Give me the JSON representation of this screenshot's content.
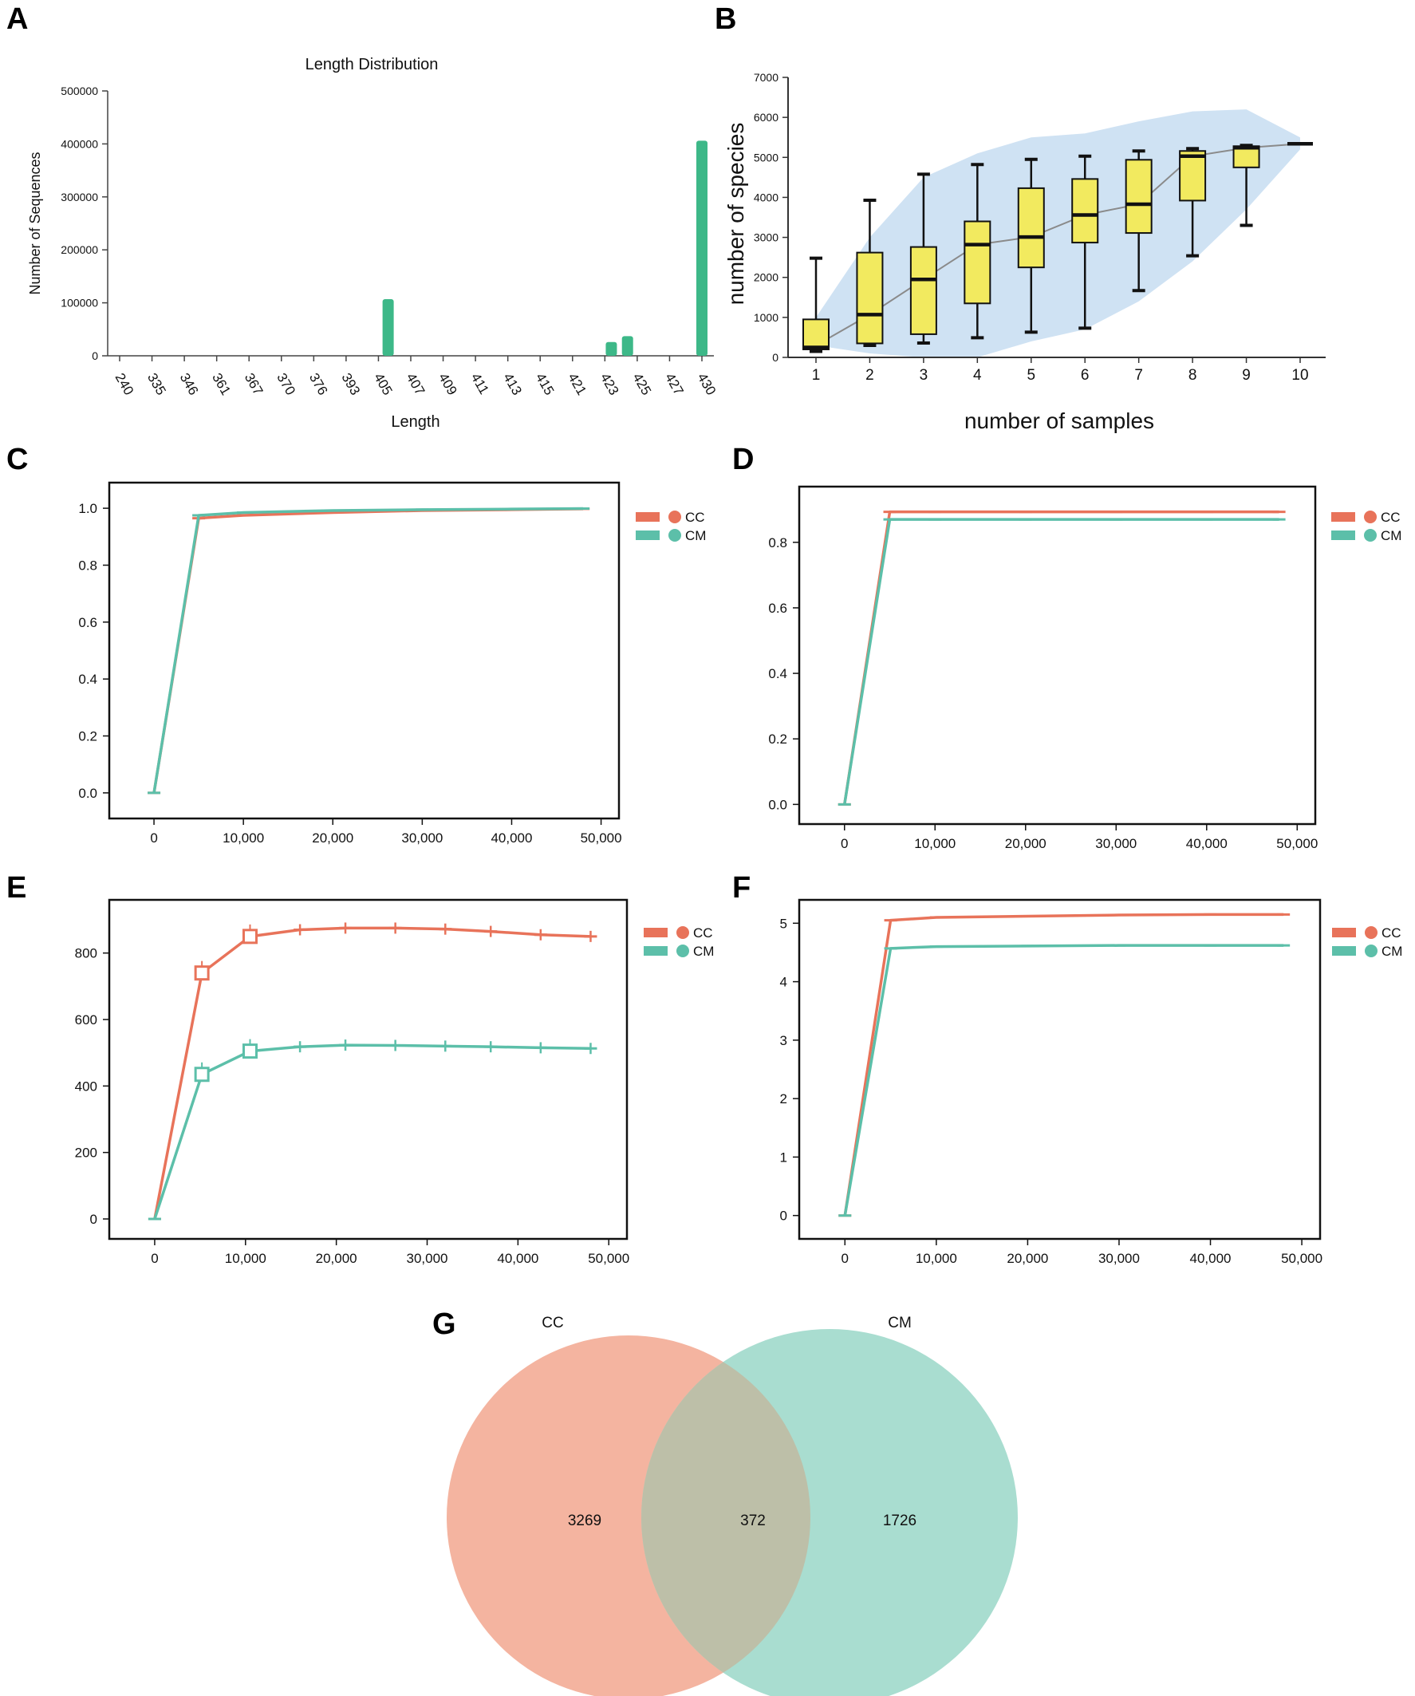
{
  "figure": {
    "panel_letters": [
      "A",
      "B",
      "C",
      "D",
      "E",
      "F",
      "G"
    ],
    "colors": {
      "cc": "#e8735a",
      "cm": "#5cbfa9",
      "bar": "#3db888",
      "box": "#f2ea5f",
      "band": "#cfe2f3",
      "venn_cc": "#f4b4a0",
      "venn_cm": "#a9ddd0",
      "venn_overlap": "#bdbfa8"
    }
  },
  "chart_data": [
    {
      "panel": "A",
      "type": "bar",
      "title": "Length Distribution",
      "xlabel": "Length",
      "ylabel": "Number of Sequences",
      "categories": [
        "240",
        "335",
        "346",
        "361",
        "367",
        "370",
        "376",
        "393",
        "405",
        "407",
        "409",
        "411",
        "413",
        "415",
        "421",
        "423",
        "425",
        "427",
        "430"
      ],
      "values": [
        0,
        0,
        0,
        0,
        0,
        0,
        0,
        0,
        107000,
        0,
        0,
        0,
        0,
        0,
        0,
        26000,
        37000,
        0,
        406000
      ],
      "bar_positions": [
        0,
        1,
        2,
        3,
        4,
        5,
        6,
        7,
        8.3,
        9,
        10,
        11,
        12,
        13,
        14,
        15.2,
        15.7,
        17,
        18
      ],
      "ylim": [
        0,
        500000
      ],
      "yticks": [
        0,
        100000,
        200000,
        300000,
        400000,
        500000
      ]
    },
    {
      "panel": "B",
      "type": "box",
      "xlabel": "number of samples",
      "ylabel": "number of species",
      "categories": [
        "1",
        "2",
        "3",
        "4",
        "5",
        "6",
        "7",
        "8",
        "9",
        "10"
      ],
      "ylim": [
        0,
        7000
      ],
      "yticks": [
        0,
        1000,
        2000,
        3000,
        4000,
        5000,
        6000,
        7000
      ],
      "boxes": [
        {
          "min": 150,
          "q1": 200,
          "median": 250,
          "q3": 950,
          "max": 2480
        },
        {
          "min": 300,
          "q1": 350,
          "median": 1070,
          "q3": 2620,
          "max": 3930
        },
        {
          "min": 360,
          "q1": 580,
          "median": 1950,
          "q3": 2760,
          "max": 4580
        },
        {
          "min": 490,
          "q1": 1350,
          "median": 2820,
          "q3": 3400,
          "max": 4820
        },
        {
          "min": 630,
          "q1": 2250,
          "median": 3010,
          "q3": 4230,
          "max": 4950
        },
        {
          "min": 730,
          "q1": 2870,
          "median": 3560,
          "q3": 4460,
          "max": 5030
        },
        {
          "min": 1670,
          "q1": 3110,
          "median": 3830,
          "q3": 4940,
          "max": 5160
        },
        {
          "min": 2540,
          "q1": 3920,
          "median": 5030,
          "q3": 5160,
          "max": 5220
        },
        {
          "min": 3300,
          "q1": 4750,
          "median": 5240,
          "q3": 5280,
          "max": 5300
        },
        {
          "min": 5340,
          "q1": 5340,
          "median": 5340,
          "q3": 5340,
          "max": 5340
        }
      ],
      "mean_line": [
        300,
        1070,
        1950,
        2820,
        3010,
        3560,
        3830,
        5030,
        5240,
        5340
      ],
      "band_upper": [
        1000,
        3000,
        4500,
        5100,
        5500,
        5600,
        5900,
        6150,
        6200,
        5500
      ],
      "band_lower": [
        300,
        100,
        0,
        0,
        400,
        700,
        1400,
        2400,
        3700,
        5200
      ]
    },
    {
      "panel": "C",
      "type": "line",
      "xlim": [
        -5000,
        52000
      ],
      "ylim": [
        -0.09,
        1.09
      ],
      "xticks": [
        0,
        10000,
        20000,
        30000,
        40000,
        50000
      ],
      "xtick_labels": [
        "0",
        "10,000",
        "20,000",
        "30,000",
        "40,000",
        "50,000"
      ],
      "yticks": [
        0,
        0.2,
        0.4,
        0.6,
        0.8,
        1.0
      ],
      "ytick_labels": [
        "0.0",
        "0.2",
        "0.4",
        "0.6",
        "0.8",
        "1.0"
      ],
      "legend": [
        "CC",
        "CM"
      ],
      "series": [
        {
          "name": "CC",
          "x": [
            0,
            5000,
            10000,
            20000,
            30000,
            40000,
            48000
          ],
          "y": [
            0,
            0.965,
            0.975,
            0.985,
            0.992,
            0.995,
            0.998
          ]
        },
        {
          "name": "CM",
          "x": [
            0,
            5000,
            10000,
            20000,
            30000,
            40000,
            48000
          ],
          "y": [
            0,
            0.975,
            0.985,
            0.992,
            0.995,
            0.997,
            0.999
          ]
        }
      ]
    },
    {
      "panel": "D",
      "type": "line",
      "xlim": [
        -5000,
        52000
      ],
      "ylim": [
        -0.06,
        0.97
      ],
      "xticks": [
        0,
        10000,
        20000,
        30000,
        40000,
        50000
      ],
      "xtick_labels": [
        "0",
        "10,000",
        "20,000",
        "30,000",
        "40,000",
        "50,000"
      ],
      "yticks": [
        0,
        0.2,
        0.4,
        0.6,
        0.8
      ],
      "ytick_labels": [
        "0.0",
        "0.2",
        "0.4",
        "0.6",
        "0.8"
      ],
      "legend": [
        "CC",
        "CM"
      ],
      "series": [
        {
          "name": "CC",
          "x": [
            0,
            5000,
            10000,
            20000,
            30000,
            40000,
            48000
          ],
          "y": [
            0,
            0.893,
            0.893,
            0.893,
            0.893,
            0.893,
            0.893
          ]
        },
        {
          "name": "CM",
          "x": [
            0,
            5000,
            10000,
            20000,
            30000,
            40000,
            48000
          ],
          "y": [
            0,
            0.87,
            0.87,
            0.87,
            0.87,
            0.87,
            0.87
          ]
        }
      ]
    },
    {
      "panel": "E",
      "type": "line",
      "xlim": [
        -5000,
        52000
      ],
      "ylim": [
        -60,
        960
      ],
      "xticks": [
        0,
        10000,
        20000,
        30000,
        40000,
        50000
      ],
      "xtick_labels": [
        "0",
        "10,000",
        "20,000",
        "30,000",
        "40,000",
        "50,000"
      ],
      "yticks": [
        0,
        200,
        400,
        600,
        800
      ],
      "ytick_labels": [
        "0",
        "200",
        "400",
        "600",
        "800"
      ],
      "legend": [
        "CC",
        "CM"
      ],
      "series": [
        {
          "name": "CC",
          "x": [
            0,
            5200,
            10500,
            16000,
            21000,
            26500,
            32000,
            37000,
            42500,
            48000
          ],
          "y": [
            0,
            740,
            850,
            870,
            875,
            875,
            872,
            865,
            855,
            850
          ]
        },
        {
          "name": "CM",
          "x": [
            0,
            5200,
            10500,
            16000,
            21000,
            26500,
            32000,
            37000,
            42500,
            48000
          ],
          "y": [
            0,
            435,
            505,
            518,
            523,
            522,
            520,
            518,
            515,
            513
          ]
        }
      ]
    },
    {
      "panel": "F",
      "type": "line",
      "xlim": [
        -5000,
        52000
      ],
      "ylim": [
        -0.4,
        5.4
      ],
      "xticks": [
        0,
        10000,
        20000,
        30000,
        40000,
        50000
      ],
      "xtick_labels": [
        "0",
        "10,000",
        "20,000",
        "30,000",
        "40,000",
        "50,000"
      ],
      "yticks": [
        0,
        1,
        2,
        3,
        4,
        5
      ],
      "ytick_labels": [
        "0",
        "1",
        "2",
        "3",
        "4",
        "5"
      ],
      "legend": [
        "CC",
        "CM"
      ],
      "series": [
        {
          "name": "CC",
          "x": [
            0,
            5000,
            10000,
            20000,
            30000,
            40000,
            48000
          ],
          "y": [
            0,
            5.05,
            5.1,
            5.12,
            5.14,
            5.15,
            5.15
          ]
        },
        {
          "name": "CM",
          "x": [
            0,
            5000,
            10000,
            20000,
            30000,
            40000,
            48000
          ],
          "y": [
            0,
            4.57,
            4.6,
            4.61,
            4.62,
            4.62,
            4.62
          ]
        }
      ]
    },
    {
      "panel": "G",
      "type": "venn",
      "sets": [
        "CC",
        "CM"
      ],
      "values": {
        "cc_only": "3269",
        "overlap": "372",
        "cm_only": "1726"
      }
    }
  ]
}
